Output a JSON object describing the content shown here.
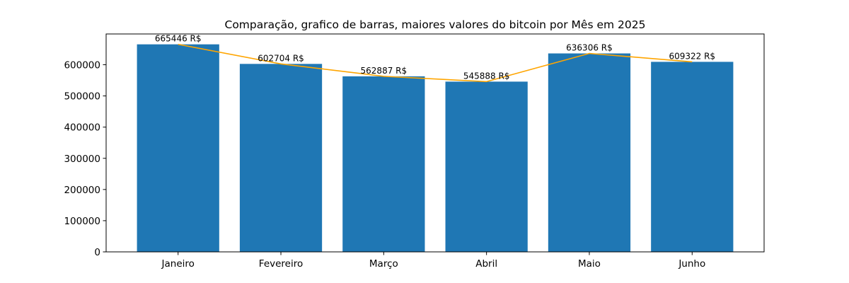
{
  "chart_data": {
    "type": "bar",
    "title": "Comparação, grafico de barras, maiores valores do bitcoin por Mês em 2025",
    "xlabel": "",
    "ylabel": "",
    "categories": [
      "Janeiro",
      "Fevereiro",
      "Março",
      "Abril",
      "Maio",
      "Junho"
    ],
    "values": [
      665446,
      602704,
      562887,
      545888,
      636306,
      609322
    ],
    "data_labels": [
      "665446 R$",
      "602704 R$",
      "562887 R$",
      "545888 R$",
      "636306 R$",
      "609322 R$"
    ],
    "line_values": [
      665446,
      602704,
      562887,
      545888,
      636306,
      609322
    ],
    "yticks": [
      0,
      100000,
      200000,
      300000,
      400000,
      500000,
      600000
    ],
    "ylim": [
      0,
      698718
    ],
    "bar_color": "#1f77b4",
    "line_color": "#ffa500",
    "grid": false,
    "legend": "none"
  }
}
